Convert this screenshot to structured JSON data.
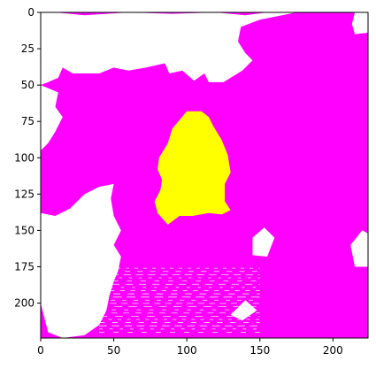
{
  "chart_data": {
    "type": "heatmap",
    "title": "",
    "xlabel": "",
    "ylabel": "",
    "xlim": [
      0,
      224
    ],
    "ylim": [
      224,
      0
    ],
    "x_ticks": [
      0,
      50,
      100,
      150,
      200
    ],
    "y_ticks": [
      0,
      25,
      50,
      75,
      100,
      125,
      150,
      175,
      200
    ],
    "grid": false,
    "legend": "none",
    "colors": {
      "background": "#ffffff",
      "region_magenta": "#ff00ff",
      "region_yellow": "#ffff00",
      "frame": "#000000"
    },
    "regions": [
      {
        "label": "white",
        "color": "#ffffff",
        "polygons": [
          [
            [
              0,
              0
            ],
            [
              10,
              0
            ],
            [
              30,
              2
            ],
            [
              60,
              0
            ],
            [
              90,
              1
            ],
            [
              120,
              0
            ],
            [
              140,
              2
            ],
            [
              155,
              0
            ],
            [
              175,
              0
            ],
            [
              150,
              5
            ],
            [
              137,
              10
            ],
            [
              135,
              20
            ],
            [
              140,
              28
            ],
            [
              145,
              33
            ],
            [
              138,
              40
            ],
            [
              125,
              48
            ],
            [
              115,
              48
            ],
            [
              112,
              42
            ],
            [
              105,
              47
            ],
            [
              97,
              40
            ],
            [
              88,
              42
            ],
            [
              85,
              35
            ],
            [
              72,
              38
            ],
            [
              60,
              40
            ],
            [
              50,
              38
            ],
            [
              40,
              42
            ],
            [
              22,
              42
            ],
            [
              15,
              38
            ],
            [
              12,
              45
            ],
            [
              5,
              48
            ],
            [
              0,
              50
            ]
          ],
          [
            [
              0,
              50
            ],
            [
              12,
              55
            ],
            [
              10,
              65
            ],
            [
              15,
              72
            ],
            [
              10,
              82
            ],
            [
              5,
              90
            ],
            [
              0,
              95
            ]
          ],
          [
            [
              0,
              138
            ],
            [
              10,
              140
            ],
            [
              20,
              135
            ],
            [
              30,
              125
            ],
            [
              40,
              120
            ],
            [
              50,
              118
            ],
            [
              48,
              128
            ],
            [
              50,
              140
            ],
            [
              55,
              150
            ],
            [
              50,
              160
            ],
            [
              55,
              168
            ],
            [
              53,
              178
            ],
            [
              50,
              185
            ],
            [
              47,
              195
            ],
            [
              45,
              205
            ],
            [
              40,
              215
            ],
            [
              30,
              222
            ],
            [
              15,
              224
            ],
            [
              5,
              220
            ],
            [
              0,
              200
            ]
          ],
          [
            [
              230,
              0
            ],
            [
              215,
              0
            ],
            [
              213,
              8
            ],
            [
              215,
              15
            ],
            [
              224,
              14
            ]
          ],
          [
            [
              212,
              160
            ],
            [
              220,
              150
            ],
            [
              224,
              152
            ],
            [
              224,
              175
            ],
            [
              215,
              175
            ]
          ],
          [
            [
              145,
              155
            ],
            [
              153,
              148
            ],
            [
              160,
              155
            ],
            [
              155,
              168
            ],
            [
              145,
              167
            ]
          ],
          [
            [
              140,
              198
            ],
            [
              148,
              205
            ],
            [
              138,
              212
            ],
            [
              130,
              208
            ]
          ]
        ]
      },
      {
        "label": "yellow",
        "color": "#ffff00",
        "polygons": [
          [
            [
              100,
              68
            ],
            [
              110,
              68
            ],
            [
              115,
              72
            ],
            [
              118,
              78
            ],
            [
              124,
              88
            ],
            [
              128,
              98
            ],
            [
              130,
              110
            ],
            [
              126,
              118
            ],
            [
              126,
              130
            ],
            [
              130,
              136
            ],
            [
              124,
              139
            ],
            [
              115,
              138
            ],
            [
              104,
              140
            ],
            [
              95,
              140
            ],
            [
              87,
              146
            ],
            [
              80,
              138
            ],
            [
              78,
              130
            ],
            [
              82,
              122
            ],
            [
              83,
              115
            ],
            [
              80,
              108
            ],
            [
              81,
              100
            ],
            [
              87,
              90
            ],
            [
              90,
              80
            ]
          ]
        ]
      }
    ]
  }
}
